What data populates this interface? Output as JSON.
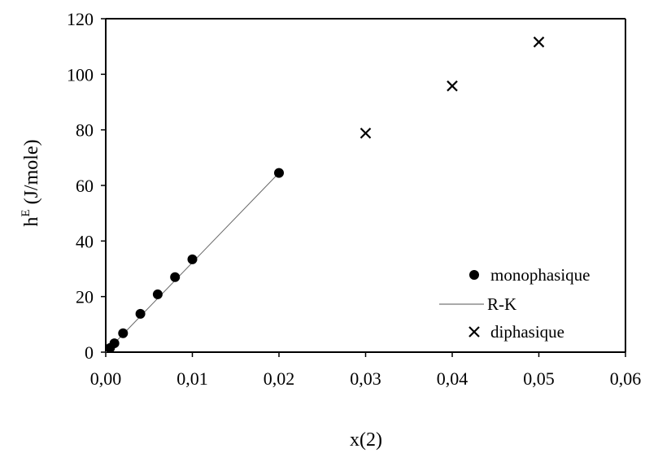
{
  "chart_data": {
    "type": "scatter",
    "xlabel": "x(2)",
    "ylabel_main": "h",
    "ylabel_sup": "E",
    "ylabel_rest": " (J/mole)",
    "xlim": [
      0,
      0.06
    ],
    "ylim": [
      0,
      120
    ],
    "x_ticks": [
      0,
      0.01,
      0.02,
      0.03,
      0.04,
      0.05,
      0.06
    ],
    "x_tick_labels": [
      "0,00",
      "0,01",
      "0,02",
      "0,03",
      "0,04",
      "0,05",
      "0,06"
    ],
    "y_ticks": [
      0,
      20,
      40,
      60,
      80,
      100,
      120
    ],
    "y_tick_labels": [
      "0",
      "20",
      "40",
      "60",
      "80",
      "100",
      "120"
    ],
    "grid": false,
    "legend_position": "bottom-right",
    "series": [
      {
        "name": "monophasique",
        "marker": "filled-circle",
        "points": [
          {
            "x": 0.0005,
            "y": 1.5
          },
          {
            "x": 0.001,
            "y": 3.2
          },
          {
            "x": 0.002,
            "y": 6.8
          },
          {
            "x": 0.004,
            "y": 13.8
          },
          {
            "x": 0.006,
            "y": 20.8
          },
          {
            "x": 0.008,
            "y": 27.0
          },
          {
            "x": 0.01,
            "y": 33.4
          },
          {
            "x": 0.02,
            "y": 64.5
          }
        ]
      },
      {
        "name": "R-K",
        "marker": "line",
        "points": [
          {
            "x": 0.0,
            "y": 0.0
          },
          {
            "x": 0.02,
            "y": 64.5
          }
        ]
      },
      {
        "name": "diphasique",
        "marker": "x",
        "points": [
          {
            "x": 0.03,
            "y": 78.8
          },
          {
            "x": 0.04,
            "y": 95.8
          },
          {
            "x": 0.05,
            "y": 111.6
          }
        ]
      }
    ],
    "legend": [
      {
        "label": "monophasique",
        "marker": "filled-circle"
      },
      {
        "label": "R-K",
        "marker": "line"
      },
      {
        "label": "diphasique",
        "marker": "x"
      }
    ]
  }
}
